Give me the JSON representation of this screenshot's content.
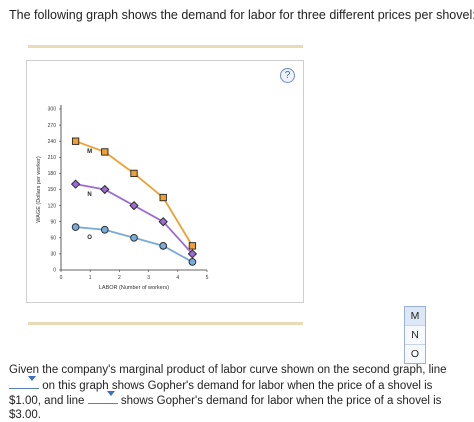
{
  "intro_text": "The following graph shows the demand for labor for three different prices per shovel:",
  "help_label": "?",
  "chart_data": {
    "type": "line",
    "xlabel": "LABOR (Number of workers)",
    "ylabel": "WAGE (Dollars per worker)",
    "xlim": [
      0,
      5
    ],
    "ylim": [
      0,
      300
    ],
    "x_ticks": [
      0,
      1,
      2,
      3,
      4,
      5
    ],
    "y_ticks": [
      0,
      30,
      60,
      90,
      120,
      150,
      180,
      210,
      240,
      270,
      300
    ],
    "series": [
      {
        "name": "M",
        "color": "#f0a030",
        "marker": "square",
        "x": [
          0.5,
          1.5,
          2.5,
          3.5,
          4.5
        ],
        "y": [
          240,
          220,
          180,
          135,
          45
        ]
      },
      {
        "name": "N",
        "color": "#9b6cd1",
        "marker": "diamond",
        "x": [
          0.5,
          1.5,
          2.5,
          3.5,
          4.5
        ],
        "y": [
          160,
          150,
          120,
          90,
          30
        ]
      },
      {
        "name": "O",
        "color": "#7aaad8",
        "marker": "circle",
        "x": [
          0.5,
          1.5,
          2.5,
          3.5,
          4.5
        ],
        "y": [
          80,
          75,
          60,
          45,
          15
        ]
      }
    ]
  },
  "dropdown": {
    "options": [
      "M",
      "N",
      "O"
    ],
    "selected": "M"
  },
  "question": {
    "part1": "Given the company's marginal product of labor curve shown on the second graph, line",
    "part2": "on this graph shows Gopher's demand for labor when the price of a shovel is $1.00, and line",
    "part3": "shows Gopher's demand for labor when the price of a shovel is $3.00."
  },
  "colors": {
    "rule": "#e8dcb6",
    "accent": "#3d6fc2"
  }
}
